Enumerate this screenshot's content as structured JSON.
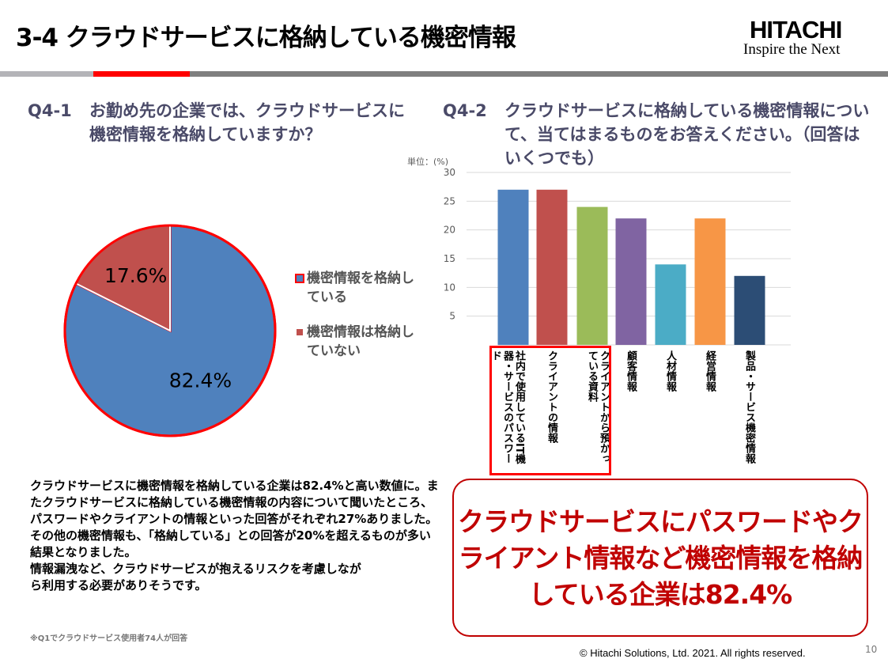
{
  "header": {
    "title": "3-4  クラウドサービスに格納している機密情報",
    "logo_main": "HITACHI",
    "logo_tagline": "Inspire the Next"
  },
  "colors": {
    "rule_gray": "#b4b4b8",
    "rule_red": "#ff0000",
    "rule_dark": "#7f7f7f",
    "callout_red": "#c00000"
  },
  "q1": {
    "num": "Q4-1",
    "text": "お勤め先の企業では、クラウドサービスに機密情報を格納していますか？"
  },
  "q2": {
    "num": "Q4-2",
    "text": "クラウドサービスに格納している機密情報について、当てはまるものをお答えください。（回答はいくつでも）"
  },
  "chart_data": [
    {
      "type": "pie",
      "slices": [
        {
          "label": "機密情報を格納している",
          "value": 82.4,
          "display": "82.4%",
          "color": "#4f81bd"
        },
        {
          "label": "機密情報は格納していない",
          "value": 17.6,
          "display": "17.6%",
          "color": "#c0504d"
        }
      ],
      "legend_placement": "right"
    },
    {
      "type": "bar",
      "unit_label": "単位：(%)",
      "ylim": [
        0,
        30
      ],
      "yticks": [
        5,
        10,
        15,
        20,
        25,
        30
      ],
      "grid": true,
      "categories": [
        "社内で使用しているIT機器・サービスのパスワード",
        "クライアントの情報",
        "クライアントから預かっている資料",
        "顧客情報",
        "人材情報",
        "経営情報",
        "製品・サービス機密情報"
      ],
      "values": [
        27,
        27,
        24,
        22,
        14,
        22,
        12
      ],
      "colors": [
        "#4f81bd",
        "#c0504d",
        "#9bbb59",
        "#8064a2",
        "#4bacc6",
        "#f79646",
        "#2c4d75"
      ]
    }
  ],
  "body_text": [
    "クラウドサービスに機密情報を格納している企業は82.4%と高い数値に。またクラウドサービスに格納している機密情報の内容について聞いたところ、パスワードやクライアントの情報といった回答がそれぞれ27%ありました。",
    "その他の機密情報も、「格納している」との回答が20%を超えるものが多い結果となりました。",
    "情報漏洩など、クラウドサービスが抱えるリスクを考慮しながら利用する必要がありそうです。"
  ],
  "note": "※Q1でクラウドサービス使用者74人が回答",
  "callout": "クラウドサービスにパスワードやクライアント情報など機密情報を格納している企業は82.4%",
  "footer": {
    "copyright": "© Hitachi Solutions, Ltd. 2021. All rights reserved.",
    "page": "10"
  }
}
